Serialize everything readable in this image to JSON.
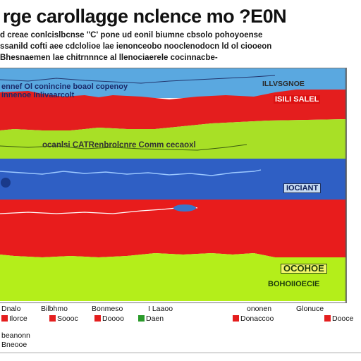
{
  "title": "rge carollagge nclence mo ?E0N",
  "subtitle_lines": [
    "d creae conlcislbcnse \"C' pone ud eonil biumne cbsolo pohoyoense",
    "ssanild cofti aee cdclolioe lae ienonceobo nooclenodocn ld ol ciooeon",
    "Bhesnaemen lae chitrnnnce al llenociaerele cocinnacbe-"
  ],
  "chart_data": {
    "type": "area",
    "title": "",
    "xlabel": "",
    "ylabel": "",
    "bands": [
      {
        "name": "top-blue",
        "color": "#5aa8e0"
      },
      {
        "name": "top-red",
        "color": "#e41e1e"
      },
      {
        "name": "upper-green",
        "color": "#a8e026"
      },
      {
        "name": "middle-blue",
        "color": "#2f5fc4"
      },
      {
        "name": "lower-red",
        "color": "#e81c1c"
      },
      {
        "name": "bottom-green",
        "color": "#b4ee1a"
      }
    ],
    "labels": {
      "top_left_1": "ennef Ol conincine boaol copenoy",
      "top_left_2": "innenoe Inlivaarcolt",
      "top_right": "ILLVSGNOE",
      "red_right": "ISILI SALEL",
      "green_mid": "ocanlsi CATRenbrolcnre Comm cecaoxl",
      "blue_right": "IOCIANT",
      "green_right": "OCOHOE",
      "green_right2": "BOHOIIOECIE"
    }
  },
  "legend": {
    "row1": [
      "Dnalo",
      "Bilbhmo",
      "Bonmeso",
      "I Laaoo",
      "ononen",
      "Glonuce"
    ],
    "row2": [
      "Ilorce",
      "Soooc",
      "Doooo",
      "Daen",
      "Donaccoo",
      "Dooce"
    ],
    "row2_colors": [
      "#e41e1e",
      "#e41e1e",
      "#e41e1e",
      "#2a9a2a",
      "#e41e1e",
      "#e41e1e"
    ],
    "row3": [
      "beanonn",
      "Bneooe"
    ]
  }
}
